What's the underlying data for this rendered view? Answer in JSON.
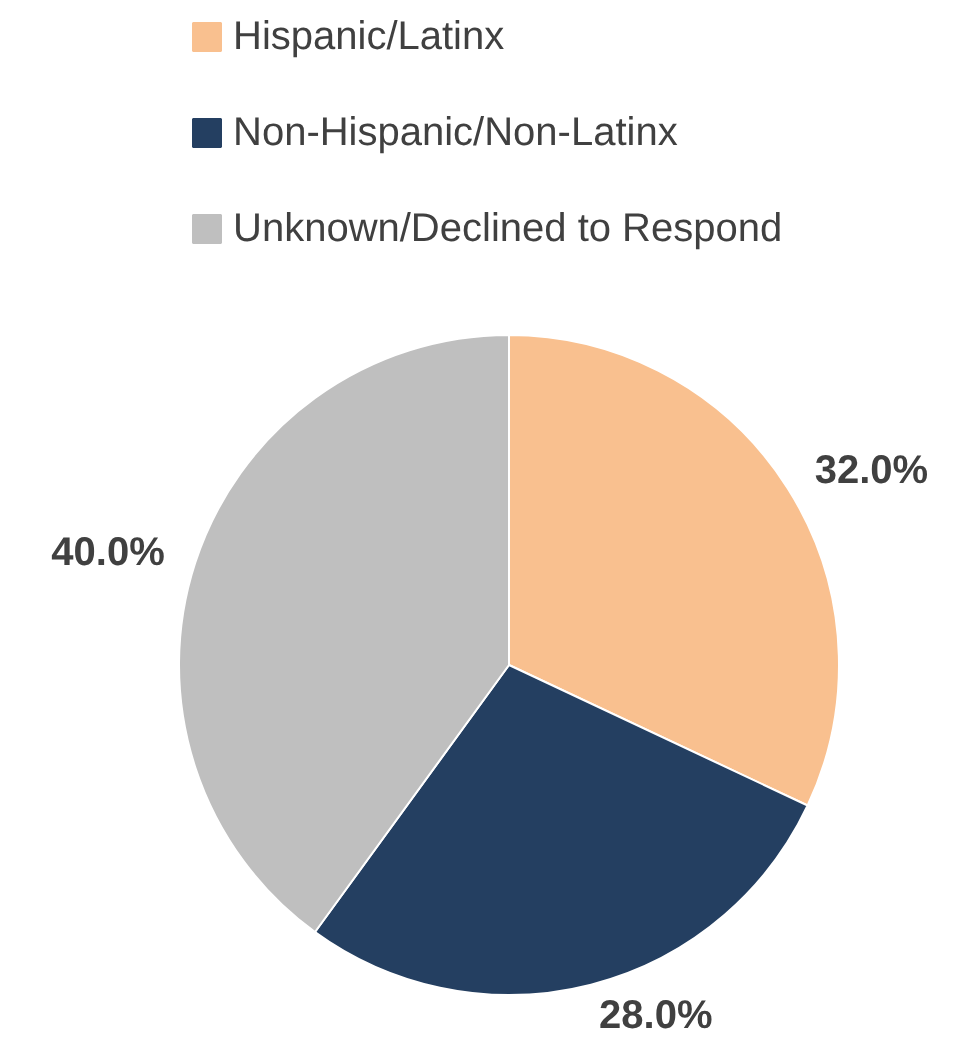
{
  "chart_data": {
    "type": "pie",
    "categories": [
      "Hispanic/Latinx",
      "Non-Hispanic/Non-Latinx",
      "Unknown/Declined to Respond"
    ],
    "values": [
      32,
      28,
      40
    ],
    "colors": [
      "#f9c08f",
      "#243f61",
      "#bfbfbf"
    ],
    "value_labels": [
      "32.0%",
      "28.0%",
      "40.0%"
    ],
    "legend": "top"
  }
}
